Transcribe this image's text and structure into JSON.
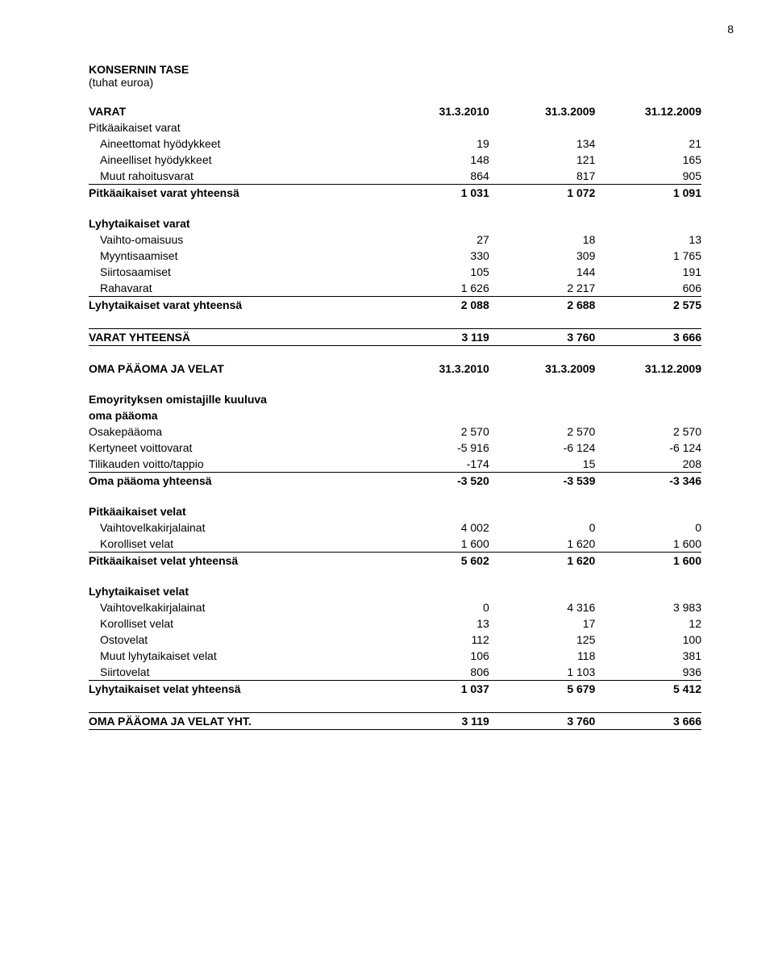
{
  "page_number": "8",
  "title": "KONSERNIN TASE",
  "subtitle": "(tuhat euroa)",
  "columns": {
    "label_width_pct": 48,
    "num_width_pct": 17.3,
    "num_align": "right"
  },
  "typography": {
    "font_family": "Arial",
    "font_size_pt": 10.5,
    "text_color": "#000000",
    "background_color": "#ffffff",
    "rule_color": "#000000"
  },
  "sections": [
    {
      "header_row": {
        "label": "VARAT",
        "values": [
          "31.3.2010",
          "31.3.2009",
          "31.12.2009"
        ]
      },
      "groups": [
        {
          "title": "Pitkäaikaiset varat",
          "rows": [
            {
              "label": "Aineettomat hyödykkeet",
              "values": [
                "19",
                "134",
                "21"
              ]
            },
            {
              "label": "Aineelliset hyödykkeet",
              "values": [
                "148",
                "121",
                "165"
              ]
            },
            {
              "label": "Muut rahoitusvarat",
              "values": [
                "864",
                "817",
                "905"
              ]
            }
          ],
          "total": {
            "label": "Pitkäaikaiset varat yhteensä",
            "values": [
              "1 031",
              "1 072",
              "1 091"
            ]
          }
        },
        {
          "title": "Lyhytaikaiset varat",
          "rows": [
            {
              "label": "Vaihto-omaisuus",
              "values": [
                "27",
                "18",
                "13"
              ]
            },
            {
              "label": "Myyntisaamiset",
              "values": [
                "330",
                "309",
                "1 765"
              ]
            },
            {
              "label": "Siirtosaamiset",
              "values": [
                "105",
                "144",
                "191"
              ]
            },
            {
              "label": "Rahavarat",
              "values": [
                "1 626",
                "2 217",
                "606"
              ]
            }
          ],
          "total": {
            "label": "Lyhytaikaiset varat yhteensä",
            "values": [
              "2 088",
              "2 688",
              "2 575"
            ]
          }
        }
      ],
      "grand_total": {
        "label": "VARAT YHTEENSÄ",
        "values": [
          "3 119",
          "3 760",
          "3 666"
        ]
      }
    },
    {
      "header_row": {
        "label": "OMA PÄÄOMA JA VELAT",
        "values": [
          "31.3.2010",
          "31.3.2009",
          "31.12.2009"
        ]
      },
      "groups": [
        {
          "title": "Emoyrityksen omistajille kuuluva",
          "title2": "oma pääoma",
          "rows": [
            {
              "label": "Osakepääoma",
              "values": [
                "2 570",
                "2 570",
                "2 570"
              ]
            },
            {
              "label": "Kertyneet voittovarat",
              "values": [
                "-5 916",
                "-6 124",
                "-6 124"
              ]
            },
            {
              "label": "Tilikauden voitto/tappio",
              "values": [
                "-174",
                "15",
                "208"
              ]
            }
          ],
          "total": {
            "label": "Oma pääoma yhteensä",
            "values": [
              "-3 520",
              "-3 539",
              "-3 346"
            ]
          }
        },
        {
          "title": "Pitkäaikaiset velat",
          "rows": [
            {
              "label": "Vaihtovelkakirjalainat",
              "values": [
                "4 002",
                "0",
                "0"
              ]
            },
            {
              "label": "Korolliset velat",
              "values": [
                "1 600",
                "1 620",
                "1 600"
              ]
            }
          ],
          "total": {
            "label": "Pitkäaikaiset velat yhteensä",
            "values": [
              "5 602",
              "1 620",
              "1 600"
            ]
          }
        },
        {
          "title": "Lyhytaikaiset velat",
          "rows": [
            {
              "label": "Vaihtovelkakirjalainat",
              "values": [
                "0",
                "4 316",
                "3 983"
              ]
            },
            {
              "label": "Korolliset velat",
              "values": [
                "13",
                "17",
                "12"
              ]
            },
            {
              "label": "Ostovelat",
              "values": [
                "112",
                "125",
                "100"
              ]
            },
            {
              "label": "Muut lyhytaikaiset velat",
              "values": [
                "106",
                "118",
                "381"
              ]
            },
            {
              "label": "Siirtovelat",
              "values": [
                "806",
                "1 103",
                "936"
              ]
            }
          ],
          "total": {
            "label": "Lyhytaikaiset velat yhteensä",
            "values": [
              "1 037",
              "5 679",
              "5 412"
            ]
          }
        }
      ],
      "grand_total": {
        "label": "OMA PÄÄOMA JA VELAT YHT.",
        "values": [
          "3 119",
          "3 760",
          "3 666"
        ]
      }
    }
  ]
}
